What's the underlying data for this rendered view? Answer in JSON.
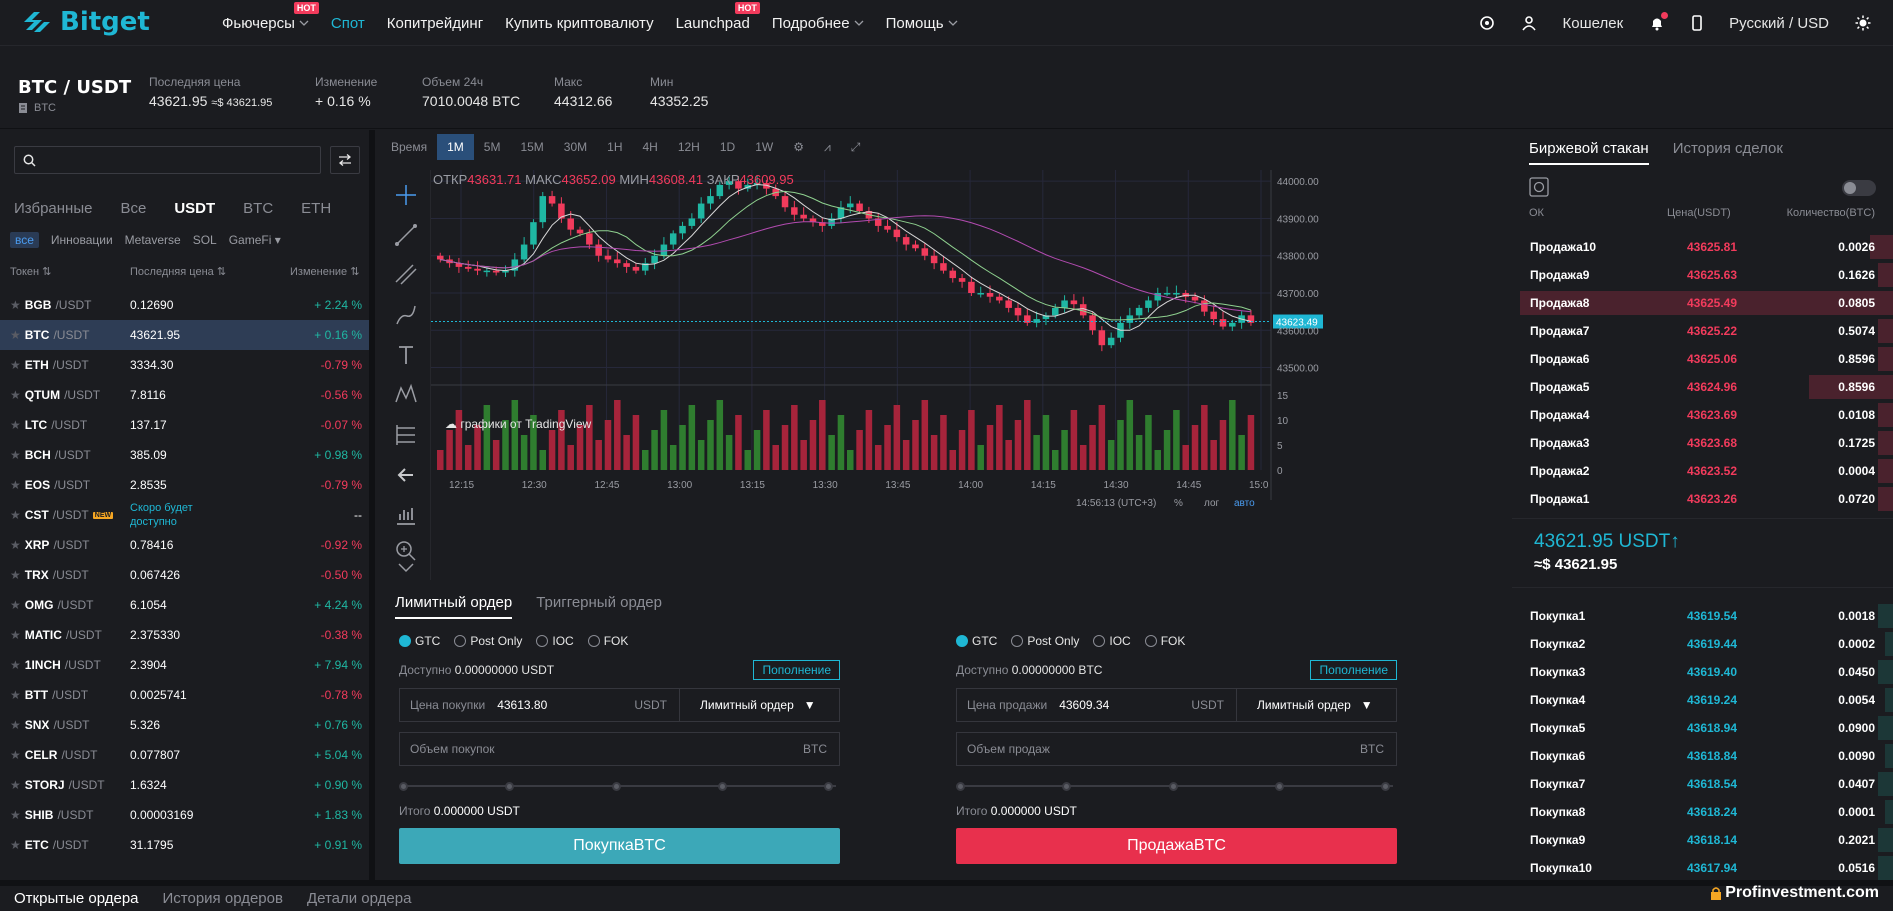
{
  "nav": {
    "brand": "Bitget",
    "links": [
      {
        "label": "Фьючерсы",
        "hot": true,
        "caret": true
      },
      {
        "label": "Спот",
        "active": true
      },
      {
        "label": "Копитрейдинг"
      },
      {
        "label": "Купить криптовалюту"
      },
      {
        "label": "Launchpad",
        "hot": true
      },
      {
        "label": "Подробнее",
        "caret": true
      },
      {
        "label": "Помощь",
        "caret": true
      }
    ],
    "hot_label": "HOT",
    "wallet": "Кошелек",
    "language": "Русский / USD"
  },
  "ticker": {
    "pair": "BTC / USDT",
    "base": "BTC",
    "last_price_label": "Последняя цена",
    "last_price": "43621.95",
    "last_price_usd": "≈$ 43621.95",
    "change_label": "Изменение",
    "change": "+ 0.16 %",
    "volume_label": "Объем 24ч",
    "volume": "7010.0048 BTC",
    "high_label": "Макс",
    "high": "44312.66",
    "low_label": "Мин",
    "low": "43352.25"
  },
  "market": {
    "tabs": [
      "Избранные",
      "Все",
      "USDT",
      "BTC",
      "ETH"
    ],
    "active_tab": "USDT",
    "subtabs": [
      "все",
      "Инновации",
      "Metaverse",
      "SOL",
      "GameFi"
    ],
    "col_token": "Токен",
    "col_price": "Последняя цена",
    "col_change": "Изменение",
    "rows": [
      {
        "sym": "BGB",
        "quote": "/USDT",
        "price": "0.12690",
        "change": "+ 2.24 %",
        "up": true
      },
      {
        "sym": "BTC",
        "quote": "/USDT",
        "price": "43621.95",
        "change": "+ 0.16 %",
        "up": true,
        "selected": true
      },
      {
        "sym": "ETH",
        "quote": "/USDT",
        "price": "3334.30",
        "change": "-0.79 %",
        "up": false
      },
      {
        "sym": "QTUM",
        "quote": "/USDT",
        "price": "7.8116",
        "change": "-0.56 %",
        "up": false
      },
      {
        "sym": "LTC",
        "quote": "/USDT",
        "price": "137.17",
        "change": "-0.07 %",
        "up": false
      },
      {
        "sym": "BCH",
        "quote": "/USDT",
        "price": "385.09",
        "change": "+ 0.98 %",
        "up": true
      },
      {
        "sym": "EOS",
        "quote": "/USDT",
        "price": "2.8535",
        "change": "-0.79 %",
        "up": false
      },
      {
        "sym": "CST",
        "quote": "/USDT",
        "price": "Скоро будет доступно",
        "change": "--",
        "up": null,
        "new": "NEW"
      },
      {
        "sym": "XRP",
        "quote": "/USDT",
        "price": "0.78416",
        "change": "-0.92 %",
        "up": false
      },
      {
        "sym": "TRX",
        "quote": "/USDT",
        "price": "0.067426",
        "change": "-0.50 %",
        "up": false
      },
      {
        "sym": "OMG",
        "quote": "/USDT",
        "price": "6.1054",
        "change": "+ 4.24 %",
        "up": true
      },
      {
        "sym": "MATIC",
        "quote": "/USDT",
        "price": "2.375330",
        "change": "-0.38 %",
        "up": false
      },
      {
        "sym": "1INCH",
        "quote": "/USDT",
        "price": "2.3904",
        "change": "+ 7.94 %",
        "up": true
      },
      {
        "sym": "BTT",
        "quote": "/USDT",
        "price": "0.0025741",
        "change": "-0.78 %",
        "up": false
      },
      {
        "sym": "SNX",
        "quote": "/USDT",
        "price": "5.326",
        "change": "+ 0.76 %",
        "up": true
      },
      {
        "sym": "CELR",
        "quote": "/USDT",
        "price": "0.077807",
        "change": "+ 5.04 %",
        "up": true
      },
      {
        "sym": "STORJ",
        "quote": "/USDT",
        "price": "1.6324",
        "change": "+ 0.90 %",
        "up": true
      },
      {
        "sym": "SHIB",
        "quote": "/USDT",
        "price": "0.00003169",
        "change": "+ 1.83 %",
        "up": true
      },
      {
        "sym": "ETC",
        "quote": "/USDT",
        "price": "31.1795",
        "change": "+ 0.91 %",
        "up": true
      }
    ]
  },
  "chart_toolbar": [
    "Время",
    "1M",
    "5M",
    "15M",
    "30M",
    "1H",
    "4H",
    "12H",
    "1D",
    "1W"
  ],
  "chart_toolbar_active": "1M",
  "chart_data": {
    "type": "candlestick",
    "ohlc_labels": {
      "open": "ОТКР",
      "open_v": "43631.71",
      "high": "МАКС",
      "high_v": "43652.09",
      "low": "МИН",
      "low_v": "43608.41",
      "close": "ЗАКР",
      "close_v": "43609.95"
    },
    "y_ticks": [
      "44000.00",
      "43900.00",
      "43800.00",
      "43700.00",
      "43600.00",
      "43500.00"
    ],
    "y_range": [
      43480,
      44030
    ],
    "x_ticks": [
      "12:15",
      "12:30",
      "12:45",
      "13:00",
      "13:15",
      "13:30",
      "13:45",
      "14:00",
      "14:15",
      "14:30",
      "14:45",
      "15:0"
    ],
    "current_price": "43623.49",
    "volume_ticks": [
      "15",
      "10",
      "5",
      "0"
    ],
    "watermark": "графики от TradingView",
    "time_label": "14:56:13 (UTC+3)",
    "scale_opts": [
      "%",
      "лог",
      "авто"
    ],
    "colors": {
      "up": "#1fb7a3",
      "down": "#f23b5c",
      "ma1": "#d7d7d7",
      "ma2": "#8fd18f",
      "ma3": "#b24bb0",
      "vol_up": "#2f7d2f",
      "vol_down": "#a6243b"
    },
    "closes": [
      43790,
      43780,
      43770,
      43765,
      43760,
      43760,
      43755,
      43760,
      43790,
      43830,
      43890,
      43960,
      43940,
      43900,
      43870,
      43860,
      43830,
      43800,
      43790,
      43780,
      43770,
      43760,
      43780,
      43800,
      43830,
      43860,
      43880,
      43900,
      43940,
      43960,
      43990,
      44000,
      43980,
      43990,
      43995,
      43980,
      43960,
      43930,
      43910,
      43900,
      43890,
      43880,
      43900,
      43930,
      43940,
      43920,
      43900,
      43880,
      43870,
      43850,
      43830,
      43820,
      43800,
      43780,
      43760,
      43740,
      43730,
      43700,
      43700,
      43690,
      43680,
      43660,
      43640,
      43620,
      43630,
      43640,
      43660,
      43680,
      43670,
      43640,
      43600,
      43560,
      43580,
      43620,
      43640,
      43660,
      43680,
      43700,
      43700,
      43700,
      43690,
      43680,
      43650,
      43630,
      43610,
      43620,
      43640,
      43620
    ]
  },
  "form": {
    "tabs": [
      "Лимитный ордер",
      "Триггерный ордер"
    ],
    "options": [
      "GTC",
      "Post Only",
      "IOC",
      "FOK"
    ],
    "avail_label": "Доступно",
    "buy": {
      "avail": "0.00000000 USDT",
      "topup": "Пополнение",
      "price_label": "Цена покупки",
      "price": "43613.80",
      "unit": "USDT",
      "order_type": "Лимитный ордер",
      "amount_label": "Объем покупок",
      "amount_unit": "BTC",
      "total_label": "Итого",
      "total": "0.000000 USDT",
      "button": "ПокупкаBTC"
    },
    "sell": {
      "avail": "0.00000000 BTC",
      "topup": "Пополнение",
      "price_label": "Цена продажи",
      "price": "43609.34",
      "unit": "USDT",
      "order_type": "Лимитный ордер",
      "amount_label": "Объем продаж",
      "amount_unit": "BTC",
      "total_label": "Итого",
      "total": "0.000000 USDT",
      "button": "ПродажаBTC"
    }
  },
  "book": {
    "tabs": [
      "Биржевой стакан",
      "История сделок"
    ],
    "col_ok": "ОК",
    "col_price": "Цена(USDT)",
    "col_amount": "Количество(BTC)",
    "asks": [
      {
        "name": "Продажа10",
        "price": "43625.81",
        "amount": "0.0026",
        "depth": 0.06
      },
      {
        "name": "Продажа9",
        "price": "43625.63",
        "amount": "0.1626",
        "depth": 0.04
      },
      {
        "name": "Продажа8",
        "price": "43625.49",
        "amount": "0.0805",
        "depth": 0.98
      },
      {
        "name": "Продажа7",
        "price": "43625.22",
        "amount": "0.5074",
        "depth": 0.04
      },
      {
        "name": "Продажа6",
        "price": "43625.06",
        "amount": "0.8596",
        "depth": 0.04
      },
      {
        "name": "Продажа5",
        "price": "43624.96",
        "amount": "0.8596",
        "depth": 0.22
      },
      {
        "name": "Продажа4",
        "price": "43623.69",
        "amount": "0.0108",
        "depth": 0.04
      },
      {
        "name": "Продажа3",
        "price": "43623.68",
        "amount": "0.1725",
        "depth": 0.04
      },
      {
        "name": "Продажа2",
        "price": "43623.52",
        "amount": "0.0004",
        "depth": 0.04
      },
      {
        "name": "Продажа1",
        "price": "43623.26",
        "amount": "0.0720",
        "depth": 0.04
      }
    ],
    "mid_price": "43621.95 USDT↑",
    "mid_usd": "≈$ 43621.95",
    "bids": [
      {
        "name": "Покупка1",
        "price": "43619.54",
        "amount": "0.0018",
        "depth": 0.04
      },
      {
        "name": "Покупка2",
        "price": "43619.44",
        "amount": "0.0002",
        "depth": 0.02
      },
      {
        "name": "Покупка3",
        "price": "43619.40",
        "amount": "0.0450",
        "depth": 0.04
      },
      {
        "name": "Покупка4",
        "price": "43619.24",
        "amount": "0.0054",
        "depth": 0.02
      },
      {
        "name": "Покупка5",
        "price": "43618.94",
        "amount": "0.0900",
        "depth": 0.04
      },
      {
        "name": "Покупка6",
        "price": "43618.84",
        "amount": "0.0090",
        "depth": 0.02
      },
      {
        "name": "Покупка7",
        "price": "43618.54",
        "amount": "0.0407",
        "depth": 0.04
      },
      {
        "name": "Покупка8",
        "price": "43618.24",
        "amount": "0.0001",
        "depth": 0.02
      },
      {
        "name": "Покупка9",
        "price": "43618.14",
        "amount": "0.2021",
        "depth": 0.04
      },
      {
        "name": "Покупка10",
        "price": "43617.94",
        "amount": "0.0516",
        "depth": 0.04
      }
    ]
  },
  "bottom": {
    "tabs": [
      "Открытые ордера",
      "История ордеров",
      "Детали ордера"
    ]
  },
  "watermark_site": "Profinvestment.com"
}
